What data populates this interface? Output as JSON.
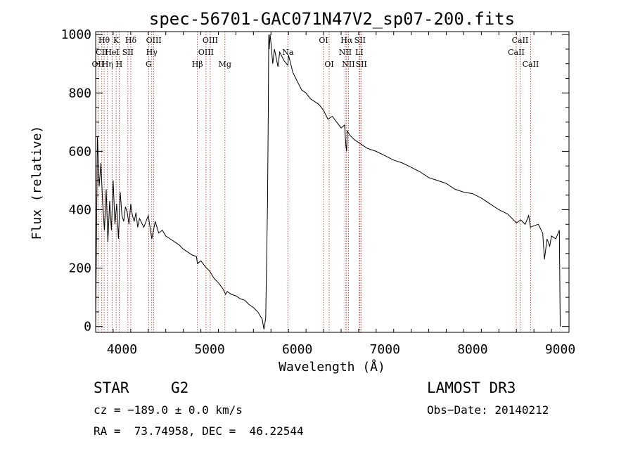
{
  "chart_data": {
    "type": "line",
    "title": "spec-56701-GAC071N47V2_sp07-200.fits",
    "xlabel": "Wavelength (Å)",
    "ylabel": "Flux (relative)",
    "xlim": [
      3700,
      9100
    ],
    "ylim": [
      -20,
      1010
    ],
    "xticks": [
      4000,
      5000,
      6000,
      7000,
      8000,
      9000
    ],
    "yticks": [
      0,
      200,
      400,
      600,
      800,
      1000
    ],
    "xtick_labels": [
      "4000",
      "5000",
      "6000",
      "7000",
      "8000",
      "9000"
    ],
    "ytick_labels": [
      "0",
      "200",
      "400",
      "600",
      "800",
      "1000"
    ],
    "series": [
      {
        "name": "flux",
        "color": "#000000",
        "x": [
          3700,
          3720,
          3740,
          3760,
          3780,
          3800,
          3820,
          3840,
          3860,
          3880,
          3900,
          3920,
          3940,
          3960,
          3980,
          4000,
          4020,
          4040,
          4060,
          4080,
          4100,
          4120,
          4140,
          4160,
          4180,
          4200,
          4250,
          4300,
          4340,
          4380,
          4420,
          4460,
          4500,
          4550,
          4600,
          4650,
          4700,
          4750,
          4800,
          4850,
          4861,
          4900,
          4950,
          5000,
          5050,
          5100,
          5150,
          5183,
          5200,
          5250,
          5300,
          5350,
          5400,
          5450,
          5500,
          5550,
          5600,
          5620,
          5640,
          5660,
          5670,
          5675,
          5680,
          5690,
          5700,
          5720,
          5740,
          5760,
          5780,
          5800,
          5850,
          5893,
          5900,
          5950,
          6000,
          6050,
          6100,
          6150,
          6200,
          6250,
          6300,
          6350,
          6400,
          6450,
          6500,
          6540,
          6555,
          6563,
          6570,
          6600,
          6650,
          6700,
          6750,
          6800,
          6900,
          7000,
          7100,
          7200,
          7300,
          7400,
          7500,
          7600,
          7700,
          7800,
          7900,
          8000,
          8100,
          8200,
          8300,
          8400,
          8450,
          8500,
          8550,
          8600,
          8640,
          8660,
          8700,
          8750,
          8800,
          8820,
          8850,
          8880,
          8900,
          8950,
          8990,
          9000
        ],
        "values": [
          0,
          650,
          480,
          560,
          420,
          330,
          470,
          290,
          430,
          330,
          500,
          350,
          420,
          300,
          460,
          380,
          360,
          410,
          390,
          350,
          420,
          380,
          360,
          390,
          340,
          370,
          340,
          380,
          300,
          360,
          320,
          330,
          310,
          300,
          290,
          280,
          265,
          255,
          245,
          240,
          215,
          225,
          205,
          190,
          165,
          150,
          130,
          110,
          120,
          110,
          105,
          95,
          90,
          75,
          65,
          50,
          25,
          -10,
          30,
          410,
          750,
          1000,
          950,
          1000,
          970,
          900,
          950,
          920,
          890,
          940,
          910,
          895,
          930,
          870,
          840,
          810,
          800,
          780,
          770,
          760,
          740,
          710,
          720,
          700,
          680,
          690,
          620,
          600,
          670,
          655,
          640,
          630,
          620,
          610,
          600,
          585,
          570,
          560,
          545,
          530,
          510,
          500,
          490,
          470,
          460,
          455,
          440,
          420,
          400,
          385,
          370,
          355,
          365,
          350,
          380,
          340,
          345,
          350,
          320,
          230,
          300,
          275,
          310,
          300,
          330,
          0
        ]
      }
    ],
    "lines": [
      {
        "label": "Hθ",
        "wl": 3797,
        "row": 1
      },
      {
        "label": "CII",
        "wl": 3770,
        "row": 2
      },
      {
        "label": "OII",
        "wl": 3727,
        "row": 3
      },
      {
        "label": "Hη",
        "wl": 3835,
        "row": 3
      },
      {
        "label": "K",
        "wl": 3934,
        "row": 1
      },
      {
        "label": "HeI",
        "wl": 3889,
        "row": 2
      },
      {
        "label": "H",
        "wl": 3968,
        "row": 3
      },
      {
        "label": "Hδ",
        "wl": 4101,
        "row": 1
      },
      {
        "label": "SII",
        "wl": 4068,
        "row": 2
      },
      {
        "label": "OIII",
        "wl": 4363,
        "row": 1
      },
      {
        "label": "Hγ",
        "wl": 4340,
        "row": 2
      },
      {
        "label": "G",
        "wl": 4305,
        "row": 3
      },
      {
        "label": "OIII",
        "wl": 5007,
        "row": 1
      },
      {
        "label": "OIII",
        "wl": 4959,
        "row": 2
      },
      {
        "label": "Hβ",
        "wl": 4861,
        "row": 3
      },
      {
        "label": "Mg",
        "wl": 5175,
        "row": 3
      },
      {
        "label": "Na",
        "wl": 5893,
        "row": 2
      },
      {
        "label": "OI",
        "wl": 6300,
        "row": 1
      },
      {
        "label": "OI",
        "wl": 6364,
        "row": 3
      },
      {
        "label": "Hα",
        "wl": 6563,
        "row": 1
      },
      {
        "label": "SII",
        "wl": 6716,
        "row": 1
      },
      {
        "label": "NII",
        "wl": 6548,
        "row": 2
      },
      {
        "label": "LI",
        "wl": 6708,
        "row": 2
      },
      {
        "label": "NII",
        "wl": 6584,
        "row": 3
      },
      {
        "label": "SII",
        "wl": 6731,
        "row": 3
      },
      {
        "label": "CaII",
        "wl": 8542,
        "row": 1
      },
      {
        "label": "CaII",
        "wl": 8498,
        "row": 2
      },
      {
        "label": "CaII",
        "wl": 8662,
        "row": 3
      }
    ]
  },
  "info": {
    "object_class": "STAR",
    "subclass": "G2",
    "survey": "LAMOST DR3",
    "cz": "cz = −189.0 ± 0.0 km/s",
    "obs_date": "Obs−Date: 20140212",
    "coords": "RA =  73.74958, DEC =  46.22544"
  },
  "colors": {
    "spectrum": "#000000",
    "line_marker": "#b22222",
    "axis": "#000000"
  }
}
